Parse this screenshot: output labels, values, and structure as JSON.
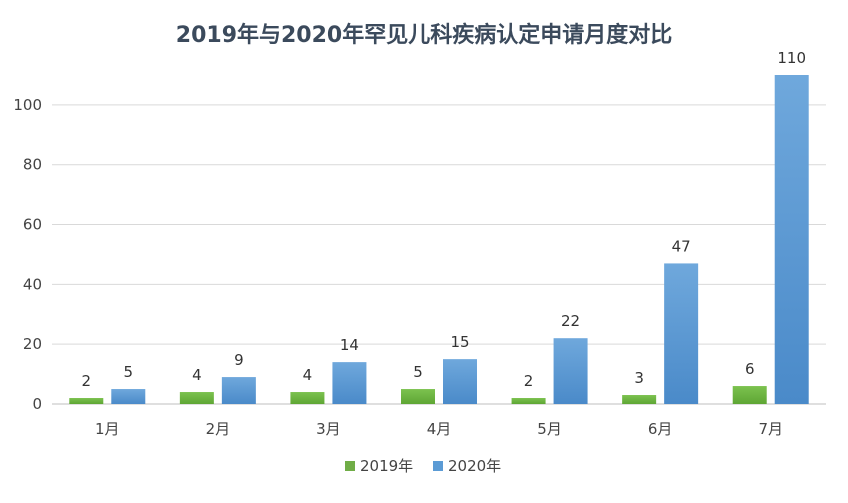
{
  "chart_data": {
    "type": "bar",
    "title": "2019年与2020年罕见儿科疾病认定申请月度对比",
    "xlabel": "",
    "ylabel": "",
    "categories": [
      "1月",
      "2月",
      "3月",
      "4月",
      "5月",
      "6月",
      "7月"
    ],
    "series": [
      {
        "name": "2019年",
        "values": [
          2,
          4,
          4,
          5,
          2,
          3,
          6
        ],
        "color": "#70ad47"
      },
      {
        "name": "2020年",
        "values": [
          5,
          9,
          14,
          15,
          22,
          47,
          110
        ],
        "color": "#5b9bd5"
      }
    ],
    "ylim": [
      0,
      110
    ],
    "yticks": [
      0,
      20,
      40,
      60,
      80,
      100
    ],
    "grid": true,
    "legend_position": "bottom-center"
  }
}
